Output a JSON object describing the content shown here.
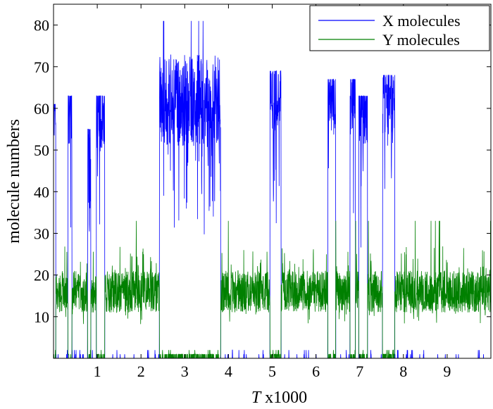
{
  "chart_data": {
    "type": "line",
    "title": "",
    "xlabel_var": "T",
    "xlabel_suffix": "x1000",
    "ylabel": "molecule numbers",
    "xlim": [
      0,
      10
    ],
    "ylim": [
      0,
      85
    ],
    "xticks": [
      1,
      2,
      3,
      4,
      5,
      6,
      7,
      8,
      9
    ],
    "yticks": [
      10,
      20,
      30,
      40,
      50,
      60,
      70,
      80
    ],
    "grid": false,
    "legend_position": "top-right",
    "colors": {
      "X": "#0000ff",
      "Y": "#008000"
    },
    "series": [
      {
        "name": "X molecules",
        "color": "#0000ff",
        "high_segments": [
          [
            0.0,
            0.05,
            60,
            61
          ],
          [
            0.33,
            0.42,
            57,
            63
          ],
          [
            0.78,
            0.85,
            50,
            55
          ],
          [
            0.98,
            1.17,
            55,
            63
          ],
          [
            2.42,
            3.82,
            43,
            81
          ],
          [
            4.95,
            5.2,
            58,
            69
          ],
          [
            6.27,
            6.45,
            60,
            67
          ],
          [
            6.78,
            6.9,
            60,
            67
          ],
          [
            6.98,
            7.18,
            57,
            63
          ],
          [
            7.52,
            7.8,
            57,
            68
          ]
        ],
        "baseline": 0
      },
      {
        "name": "Y molecules",
        "color": "#008000",
        "baseline_mean": 16,
        "baseline_range": [
          8,
          27
        ],
        "baseline_max": 33,
        "low_value": 0
      }
    ]
  }
}
